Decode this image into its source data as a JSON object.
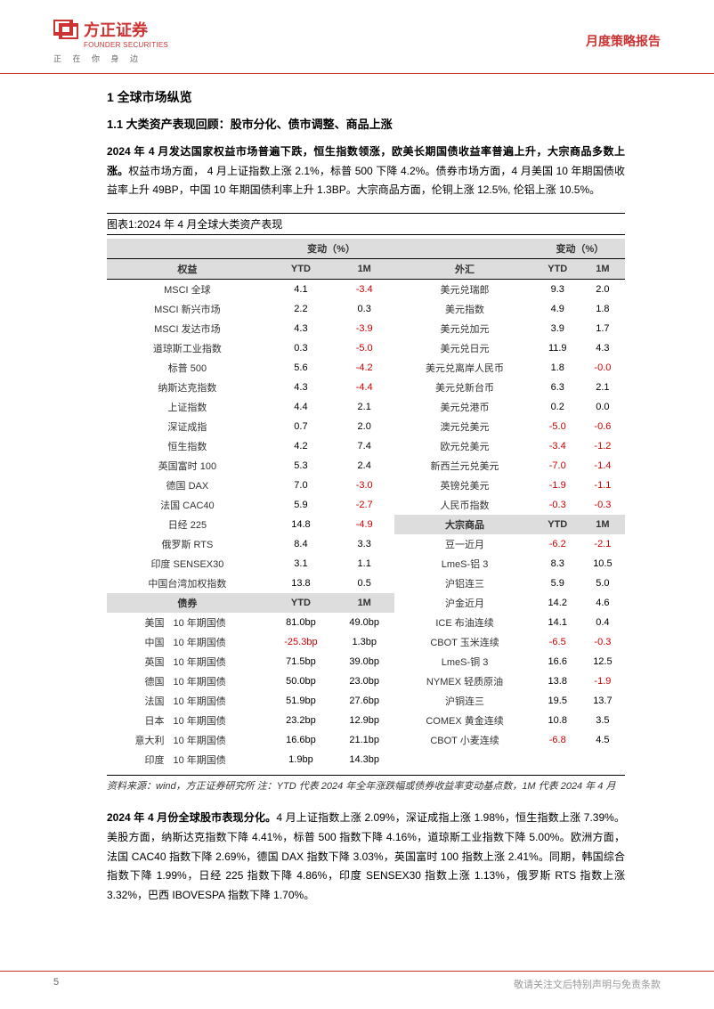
{
  "header": {
    "logo_cn": "方正证券",
    "logo_en": "FOUNDER SECURITIES",
    "tagline": "正 在 你 身 边",
    "report_type": "月度策略报告"
  },
  "section": {
    "h1": "1 全球市场纵览",
    "h2": "1.1 大类资产表现回顾：股市分化、债市调整、商品上涨",
    "para1_bold": "2024 年 4 月发达国家权益市场普遍下跌，恒生指数领涨，欧美长期国债收益率普遍上升，大宗商品多数上涨。",
    "para1_rest": "权益市场方面， 4 月上证指数上涨 2.1%，标普 500 下降 4.2%。债券市场方面，4 月美国 10 年期国债收益率上升 49BP，中国 10 年期国债利率上升 1.3BP。大宗商品方面，伦铜上涨 12.5%, 伦铝上涨 10.5%。",
    "table_caption": "图表1:2024 年 4 月全球大类资产表现",
    "para2_bold": "2024 年 4 月份全球股市表现分化。",
    "para2_rest": "4 月上证指数上涨 2.09%，深证成指上涨 1.98%，恒生指数上涨 7.39%。美股方面，纳斯达克指数下降 4.41%，标普 500 指数下降 4.16%，道琼斯工业指数下降 5.00%。欧洲方面，法国 CAC40 指数下降 2.69%，德国 DAX 指数下降 3.03%，英国富时 100 指数上涨 2.41%。同期，韩国综合指数下降 1.99%，日经 225 指数下降 4.86%，印度 SENSEX30 指数上涨 1.13%，俄罗斯 RTS 指数上涨 3.32%，巴西 IBOVESPA 指数下降 1.70%。"
  },
  "table": {
    "change_label": "变动（%）",
    "col_equity": "权益",
    "col_ytd": "YTD",
    "col_1m": "1M",
    "col_fx": "外汇",
    "col_bond": "债券",
    "col_commodity": "大宗商品",
    "equity_rows": [
      {
        "name": "MSCI 全球",
        "ytd": "4.1",
        "m1": "-3.4",
        "neg_m1": true
      },
      {
        "name": "MSCI 新兴市场",
        "ytd": "2.2",
        "m1": "0.3"
      },
      {
        "name": "MSCI 发达市场",
        "ytd": "4.3",
        "m1": "-3.9",
        "neg_m1": true
      },
      {
        "name": "道琼斯工业指数",
        "ytd": "0.3",
        "m1": "-5.0",
        "neg_m1": true
      },
      {
        "name": "标普 500",
        "ytd": "5.6",
        "m1": "-4.2",
        "neg_m1": true
      },
      {
        "name": "纳斯达克指数",
        "ytd": "4.3",
        "m1": "-4.4",
        "neg_m1": true
      },
      {
        "name": "上证指数",
        "ytd": "4.4",
        "m1": "2.1"
      },
      {
        "name": "深证成指",
        "ytd": "0.7",
        "m1": "2.0"
      },
      {
        "name": "恒生指数",
        "ytd": "4.2",
        "m1": "7.4"
      },
      {
        "name": "英国富时 100",
        "ytd": "5.3",
        "m1": "2.4"
      },
      {
        "name": "德国 DAX",
        "ytd": "7.0",
        "m1": "-3.0",
        "neg_m1": true
      },
      {
        "name": "法国 CAC40",
        "ytd": "5.9",
        "m1": "-2.7",
        "neg_m1": true
      },
      {
        "name": "日经 225",
        "ytd": "14.8",
        "m1": "-4.9",
        "neg_m1": true
      },
      {
        "name": "俄罗斯 RTS",
        "ytd": "8.4",
        "m1": "3.3"
      },
      {
        "name": "印度 SENSEX30",
        "ytd": "3.1",
        "m1": "1.1"
      },
      {
        "name": "中国台湾加权指数",
        "ytd": "13.8",
        "m1": "0.5"
      }
    ],
    "fx_rows": [
      {
        "name": "美元兑瑞郎",
        "ytd": "9.3",
        "m1": "2.0"
      },
      {
        "name": "美元指数",
        "ytd": "4.9",
        "m1": "1.8"
      },
      {
        "name": "美元兑加元",
        "ytd": "3.9",
        "m1": "1.7"
      },
      {
        "name": "美元兑日元",
        "ytd": "11.9",
        "m1": "4.3"
      },
      {
        "name": "美元兑离岸人民币",
        "ytd": "1.8",
        "m1": "-0.0",
        "neg_m1": true
      },
      {
        "name": "美元兑新台币",
        "ytd": "6.3",
        "m1": "2.1"
      },
      {
        "name": "美元兑港币",
        "ytd": "0.2",
        "m1": "0.0"
      },
      {
        "name": "澳元兑美元",
        "ytd": "-5.0",
        "m1": "-0.6",
        "neg_ytd": true,
        "neg_m1": true
      },
      {
        "name": "欧元兑美元",
        "ytd": "-3.4",
        "m1": "-1.2",
        "neg_ytd": true,
        "neg_m1": true
      },
      {
        "name": "新西兰元兑美元",
        "ytd": "-7.0",
        "m1": "-1.4",
        "neg_ytd": true,
        "neg_m1": true
      },
      {
        "name": "英镑兑美元",
        "ytd": "-1.9",
        "m1": "-1.1",
        "neg_ytd": true,
        "neg_m1": true
      },
      {
        "name": "人民币指数",
        "ytd": "-0.3",
        "m1": "-0.3",
        "neg_ytd": true,
        "neg_m1": true
      }
    ],
    "bond_rows": [
      {
        "c": "美国",
        "n": "10 年期国债",
        "ytd": "81.0bp",
        "m1": "49.0bp"
      },
      {
        "c": "中国",
        "n": "10 年期国债",
        "ytd": "-25.3bp",
        "m1": "1.3bp",
        "neg_ytd": true
      },
      {
        "c": "英国",
        "n": "10 年期国债",
        "ytd": "71.5bp",
        "m1": "39.0bp"
      },
      {
        "c": "德国",
        "n": "10 年期国债",
        "ytd": "50.0bp",
        "m1": "23.0bp"
      },
      {
        "c": "法国",
        "n": "10 年期国债",
        "ytd": "51.9bp",
        "m1": "27.6bp"
      },
      {
        "c": "日本",
        "n": "10 年期国债",
        "ytd": "23.2bp",
        "m1": "12.9bp"
      },
      {
        "c": "意大利",
        "n": "10 年期国债",
        "ytd": "16.6bp",
        "m1": "21.1bp"
      },
      {
        "c": "印度",
        "n": "10 年期国债",
        "ytd": "1.9bp",
        "m1": "14.3bp"
      }
    ],
    "commodity_rows": [
      {
        "name": "豆一近月",
        "ytd": "-6.2",
        "m1": "-2.1",
        "neg_ytd": true,
        "neg_m1": true
      },
      {
        "name": "LmeS-铝 3",
        "ytd": "8.3",
        "m1": "10.5"
      },
      {
        "name": "沪铝连三",
        "ytd": "5.9",
        "m1": "5.0"
      },
      {
        "name": "沪金近月",
        "ytd": "14.2",
        "m1": "4.6"
      },
      {
        "name": "ICE 布油连续",
        "ytd": "14.1",
        "m1": "0.4"
      },
      {
        "name": "CBOT 玉米连续",
        "ytd": "-6.5",
        "m1": "-0.3",
        "neg_ytd": true,
        "neg_m1": true
      },
      {
        "name": "LmeS-铜 3",
        "ytd": "16.6",
        "m1": "12.5"
      },
      {
        "name": "NYMEX 轻质原油",
        "ytd": "13.8",
        "m1": "-1.9",
        "neg_m1": true
      },
      {
        "name": "沪铜连三",
        "ytd": "19.5",
        "m1": "13.7"
      },
      {
        "name": "COMEX 黄金连续",
        "ytd": "10.8",
        "m1": "3.5"
      },
      {
        "name": "CBOT 小麦连续",
        "ytd": "-6.8",
        "m1": "4.5",
        "neg_ytd": true
      }
    ]
  },
  "source_note": "资料来源：wind，方正证券研究所 注：YTD 代表 2024 年全年涨跌幅或债券收益率变动基点数，1M 代表 2024 年 4 月",
  "footer": {
    "page": "5",
    "disclaimer": "敬请关注文后特别声明与免责条款"
  },
  "colors": {
    "brand_red": "#c33",
    "negative": "#c00",
    "header_gray": "#ddd"
  }
}
